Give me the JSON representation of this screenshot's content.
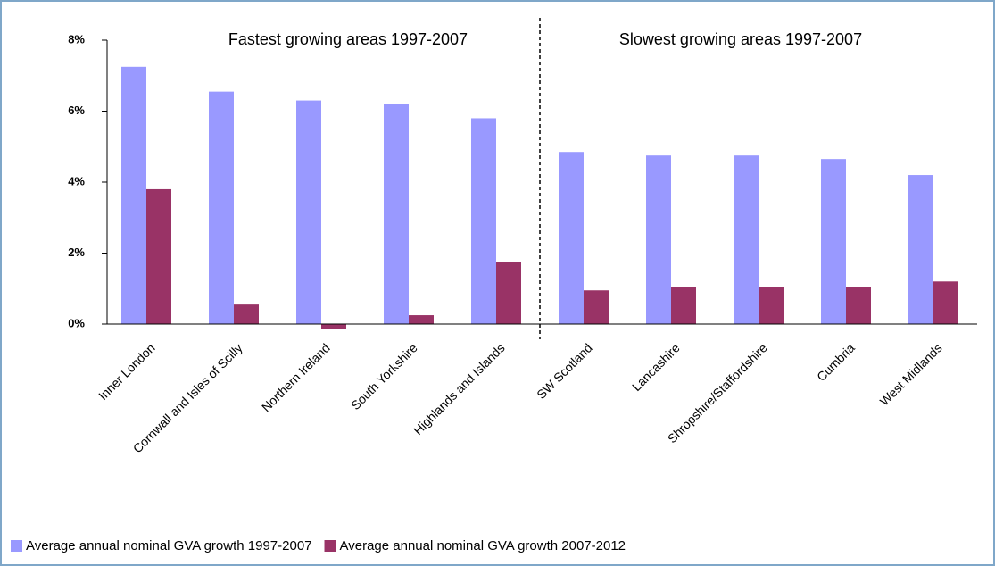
{
  "chart_data": {
    "type": "bar",
    "annotations": [
      "Fastest growing areas 1997-2007",
      "Slowest growing areas 1997-2007"
    ],
    "categories": [
      "Inner London",
      "Cornwall and Isles of Scilly",
      "Northern Ireland",
      "South Yorkshire",
      "Highlands and Islands",
      "SW Scotland",
      "Lancashire",
      "Shropshire/Staffordshire",
      "Cumbria",
      "West Midlands"
    ],
    "series": [
      {
        "name": "Average annual nominal GVA growth 1997-2007",
        "color": "#9999ff",
        "values": [
          7.25,
          6.55,
          6.3,
          6.2,
          5.8,
          4.85,
          4.75,
          4.75,
          4.65,
          4.2
        ]
      },
      {
        "name": "Average annual nominal GVA growth 2007-2012",
        "color": "#993366",
        "values": [
          3.8,
          0.55,
          -0.15,
          0.25,
          1.75,
          0.95,
          1.05,
          1.05,
          1.05,
          1.2
        ]
      }
    ],
    "ylim": [
      0,
      8
    ],
    "yticks": [
      {
        "value": 0,
        "label": "0%"
      },
      {
        "value": 2,
        "label": "2%"
      },
      {
        "value": 4,
        "label": "4%"
      },
      {
        "value": 6,
        "label": "6%"
      },
      {
        "value": 8,
        "label": "8%"
      }
    ],
    "grid": false
  }
}
